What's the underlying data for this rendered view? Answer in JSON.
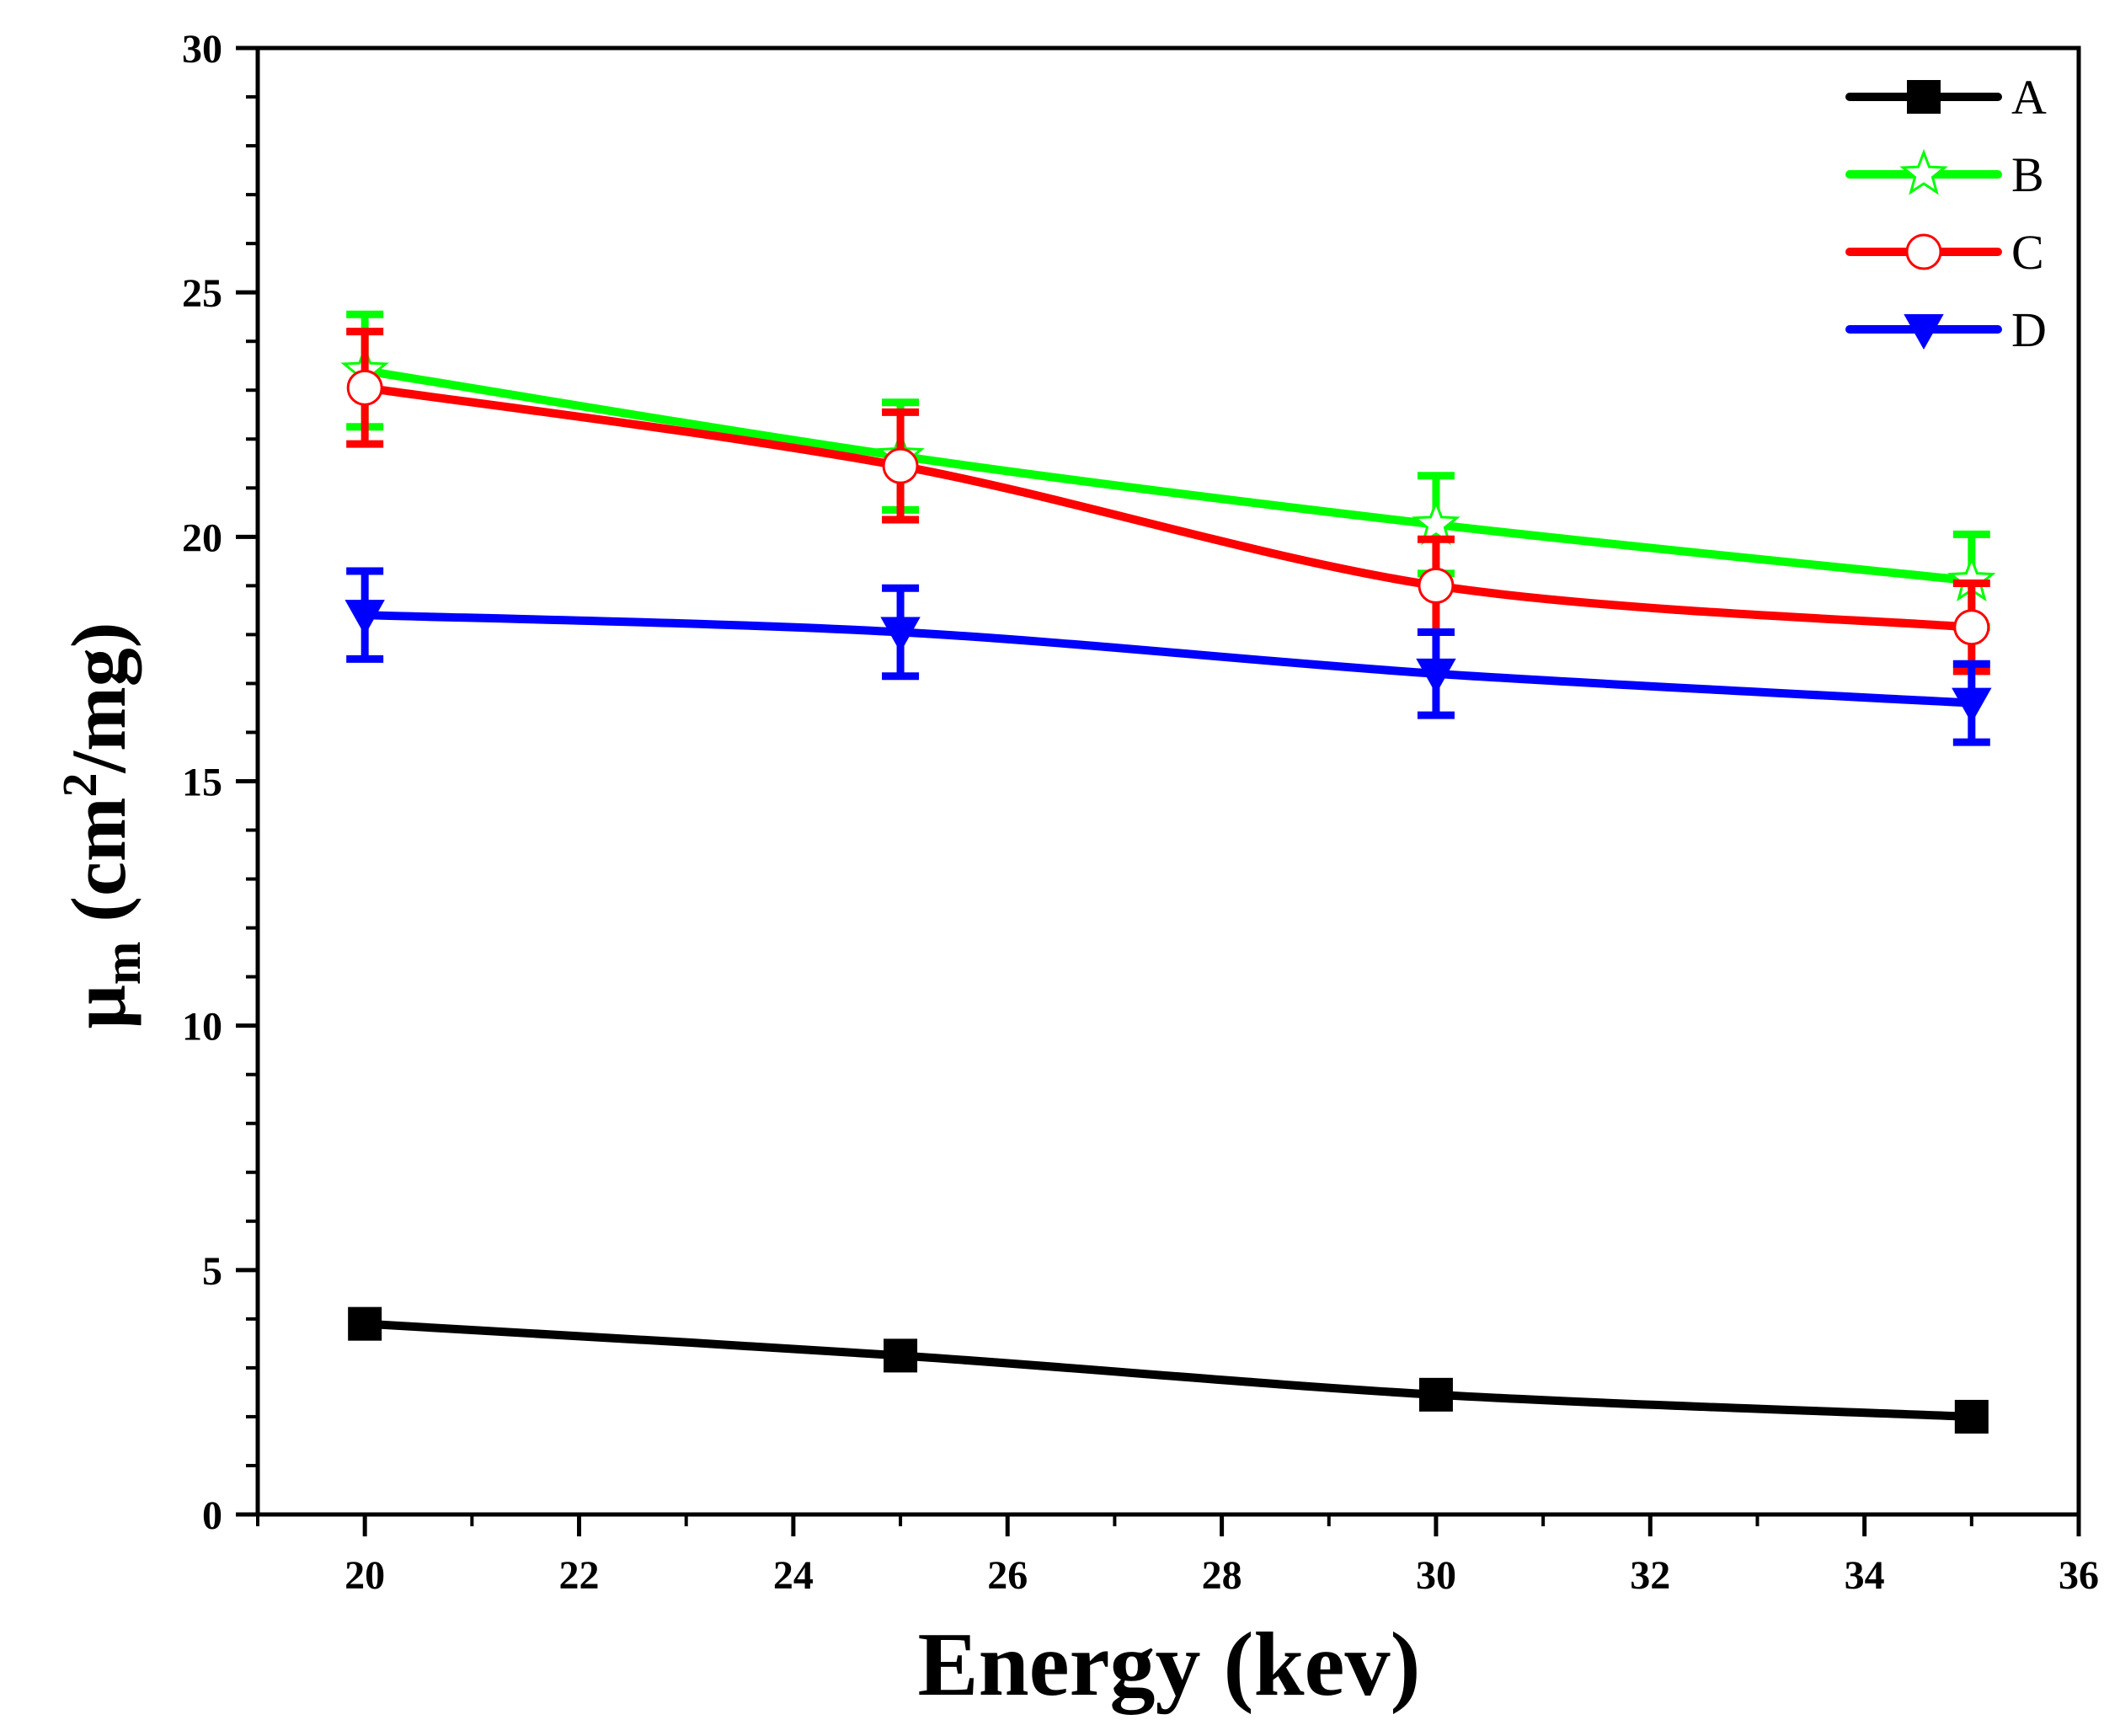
{
  "chart_data": {
    "type": "line",
    "title": "",
    "xlabel": "Energy (kev)",
    "ylabel": {
      "prefix": "μ",
      "subscript": "m",
      "unit_open": " (cm",
      "superscript": "2",
      "unit_close": "/mg)"
    },
    "xlim": [
      19,
      36
    ],
    "ylim": [
      0,
      30
    ],
    "xticks": [
      20,
      22,
      24,
      26,
      28,
      30,
      32,
      34,
      36
    ],
    "xtick_labels": [
      "20",
      "22",
      "24",
      "26",
      "28",
      "30",
      "32",
      "34",
      "36"
    ],
    "yticks": [
      0,
      5,
      10,
      15,
      20,
      25,
      30
    ],
    "ytick_labels": [
      "0",
      "5",
      "10",
      "15",
      "20",
      "25",
      "30"
    ],
    "x": [
      20,
      25,
      30,
      35
    ],
    "legend_position": "top-right",
    "grid": false,
    "series": [
      {
        "name": "A",
        "color": "#000000",
        "marker": "square",
        "values": [
          3.9,
          3.25,
          2.45,
          2.0
        ],
        "errors": [
          0,
          0,
          0,
          0
        ]
      },
      {
        "name": "B",
        "color": "#00ff00",
        "marker": "star",
        "values": [
          23.4,
          21.65,
          20.25,
          19.1
        ],
        "errors": [
          1.15,
          1.1,
          1.0,
          0.95
        ]
      },
      {
        "name": "C",
        "color": "#ff0000",
        "marker": "circle",
        "values": [
          23.05,
          21.45,
          19.0,
          18.15
        ],
        "errors": [
          1.15,
          1.1,
          0.95,
          0.9
        ]
      },
      {
        "name": "D",
        "color": "#0000ff",
        "marker": "triangle-down",
        "values": [
          18.4,
          18.05,
          17.2,
          16.6
        ],
        "errors": [
          0.9,
          0.9,
          0.85,
          0.8
        ]
      }
    ]
  }
}
